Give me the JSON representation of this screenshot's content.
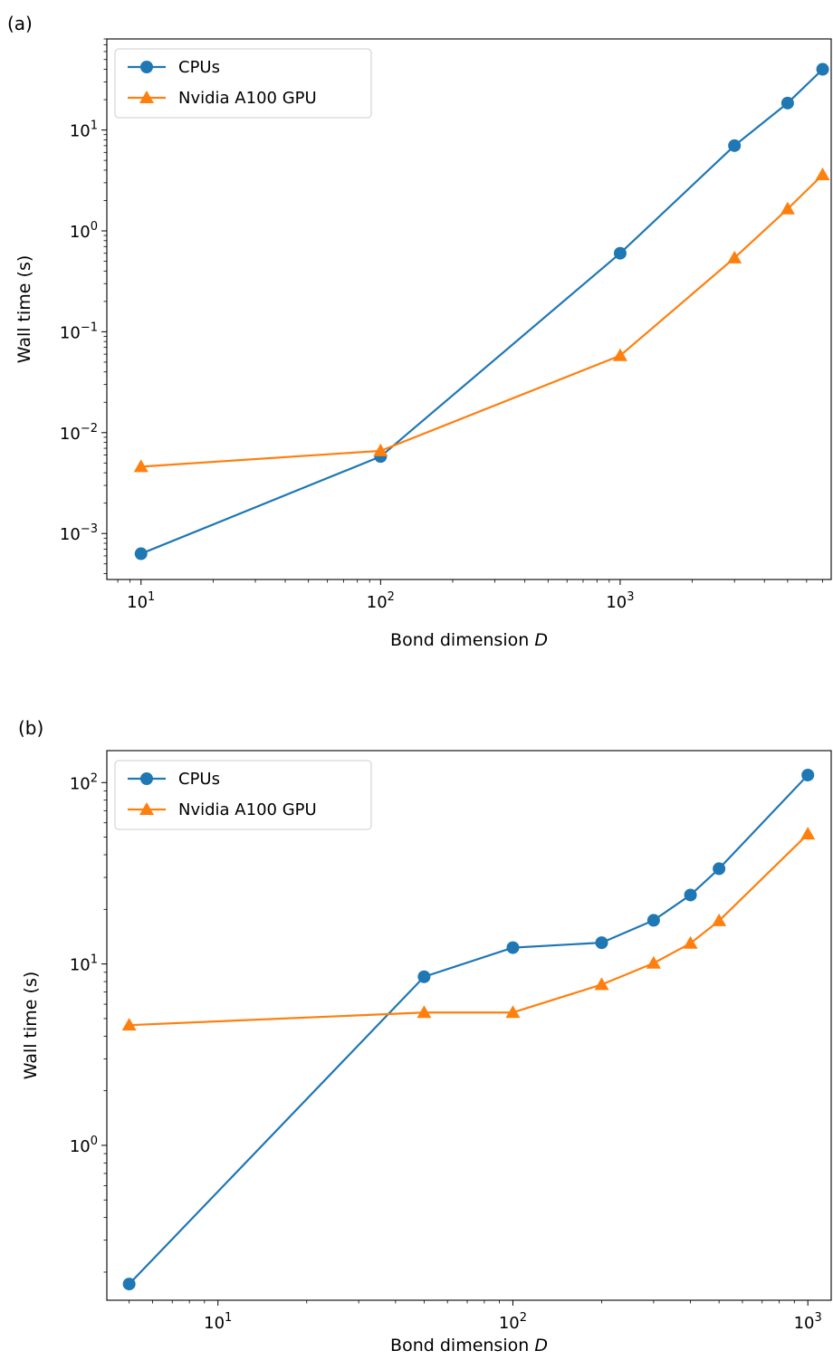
{
  "colors": {
    "cpu": "#1f77b4",
    "gpu": "#ff7f0e"
  },
  "chart_data": [
    {
      "panel_label": "(a)",
      "type": "line",
      "xscale": "log",
      "yscale": "log",
      "xlabel_main": "Bond dimension ",
      "xlabel_var": "D",
      "ylabel": "Wall time (s)",
      "xlim": [
        7.2,
        7600
      ],
      "ylim": [
        0.00035,
        80
      ],
      "xticks": [
        {
          "base": "10",
          "exp": "1"
        },
        {
          "base": "10",
          "exp": "2"
        },
        {
          "base": "10",
          "exp": "3"
        }
      ],
      "yticks": [
        {
          "base": "10",
          "exp": "−3"
        },
        {
          "base": "10",
          "exp": "−2"
        },
        {
          "base": "10",
          "exp": "−1"
        },
        {
          "base": "10",
          "exp": "0"
        },
        {
          "base": "10",
          "exp": "1"
        }
      ],
      "legend": "top-left",
      "grid": false,
      "series": [
        {
          "name": "CPUs",
          "marker": "circle",
          "x": [
            10,
            100,
            1000,
            3000,
            5000,
            7000
          ],
          "y": [
            0.00063,
            0.0058,
            0.6,
            7.0,
            18.5,
            40
          ]
        },
        {
          "name": "Nvidia A100 GPU",
          "marker": "triangle",
          "x": [
            10,
            100,
            1000,
            3000,
            5000,
            7000
          ],
          "y": [
            0.0046,
            0.0066,
            0.058,
            0.54,
            1.65,
            3.6
          ]
        }
      ]
    },
    {
      "panel_label": "(b)",
      "type": "line",
      "xscale": "log",
      "yscale": "log",
      "xlabel_main": "Bond dimension ",
      "xlabel_var": "D",
      "ylabel": "Wall time (s)",
      "xlim": [
        4.2,
        1200
      ],
      "ylim": [
        0.14,
        150
      ],
      "xticks": [
        {
          "base": "10",
          "exp": "1"
        },
        {
          "base": "10",
          "exp": "2"
        },
        {
          "base": "10",
          "exp": "3"
        }
      ],
      "yticks": [
        {
          "base": "10",
          "exp": "0"
        },
        {
          "base": "10",
          "exp": "1"
        },
        {
          "base": "10",
          "exp": "2"
        }
      ],
      "legend": "top-left",
      "grid": false,
      "series": [
        {
          "name": "CPUs",
          "marker": "circle",
          "x": [
            5,
            50,
            100,
            200,
            300,
            400,
            500,
            1000
          ],
          "y": [
            0.172,
            8.5,
            12.3,
            13.1,
            17.4,
            24,
            33.5,
            110
          ]
        },
        {
          "name": "Nvidia A100 GPU",
          "marker": "triangle",
          "x": [
            5,
            50,
            100,
            200,
            300,
            400,
            500,
            1000
          ],
          "y": [
            4.6,
            5.4,
            5.4,
            7.7,
            10.1,
            13.0,
            17.3,
            52
          ]
        }
      ]
    }
  ]
}
